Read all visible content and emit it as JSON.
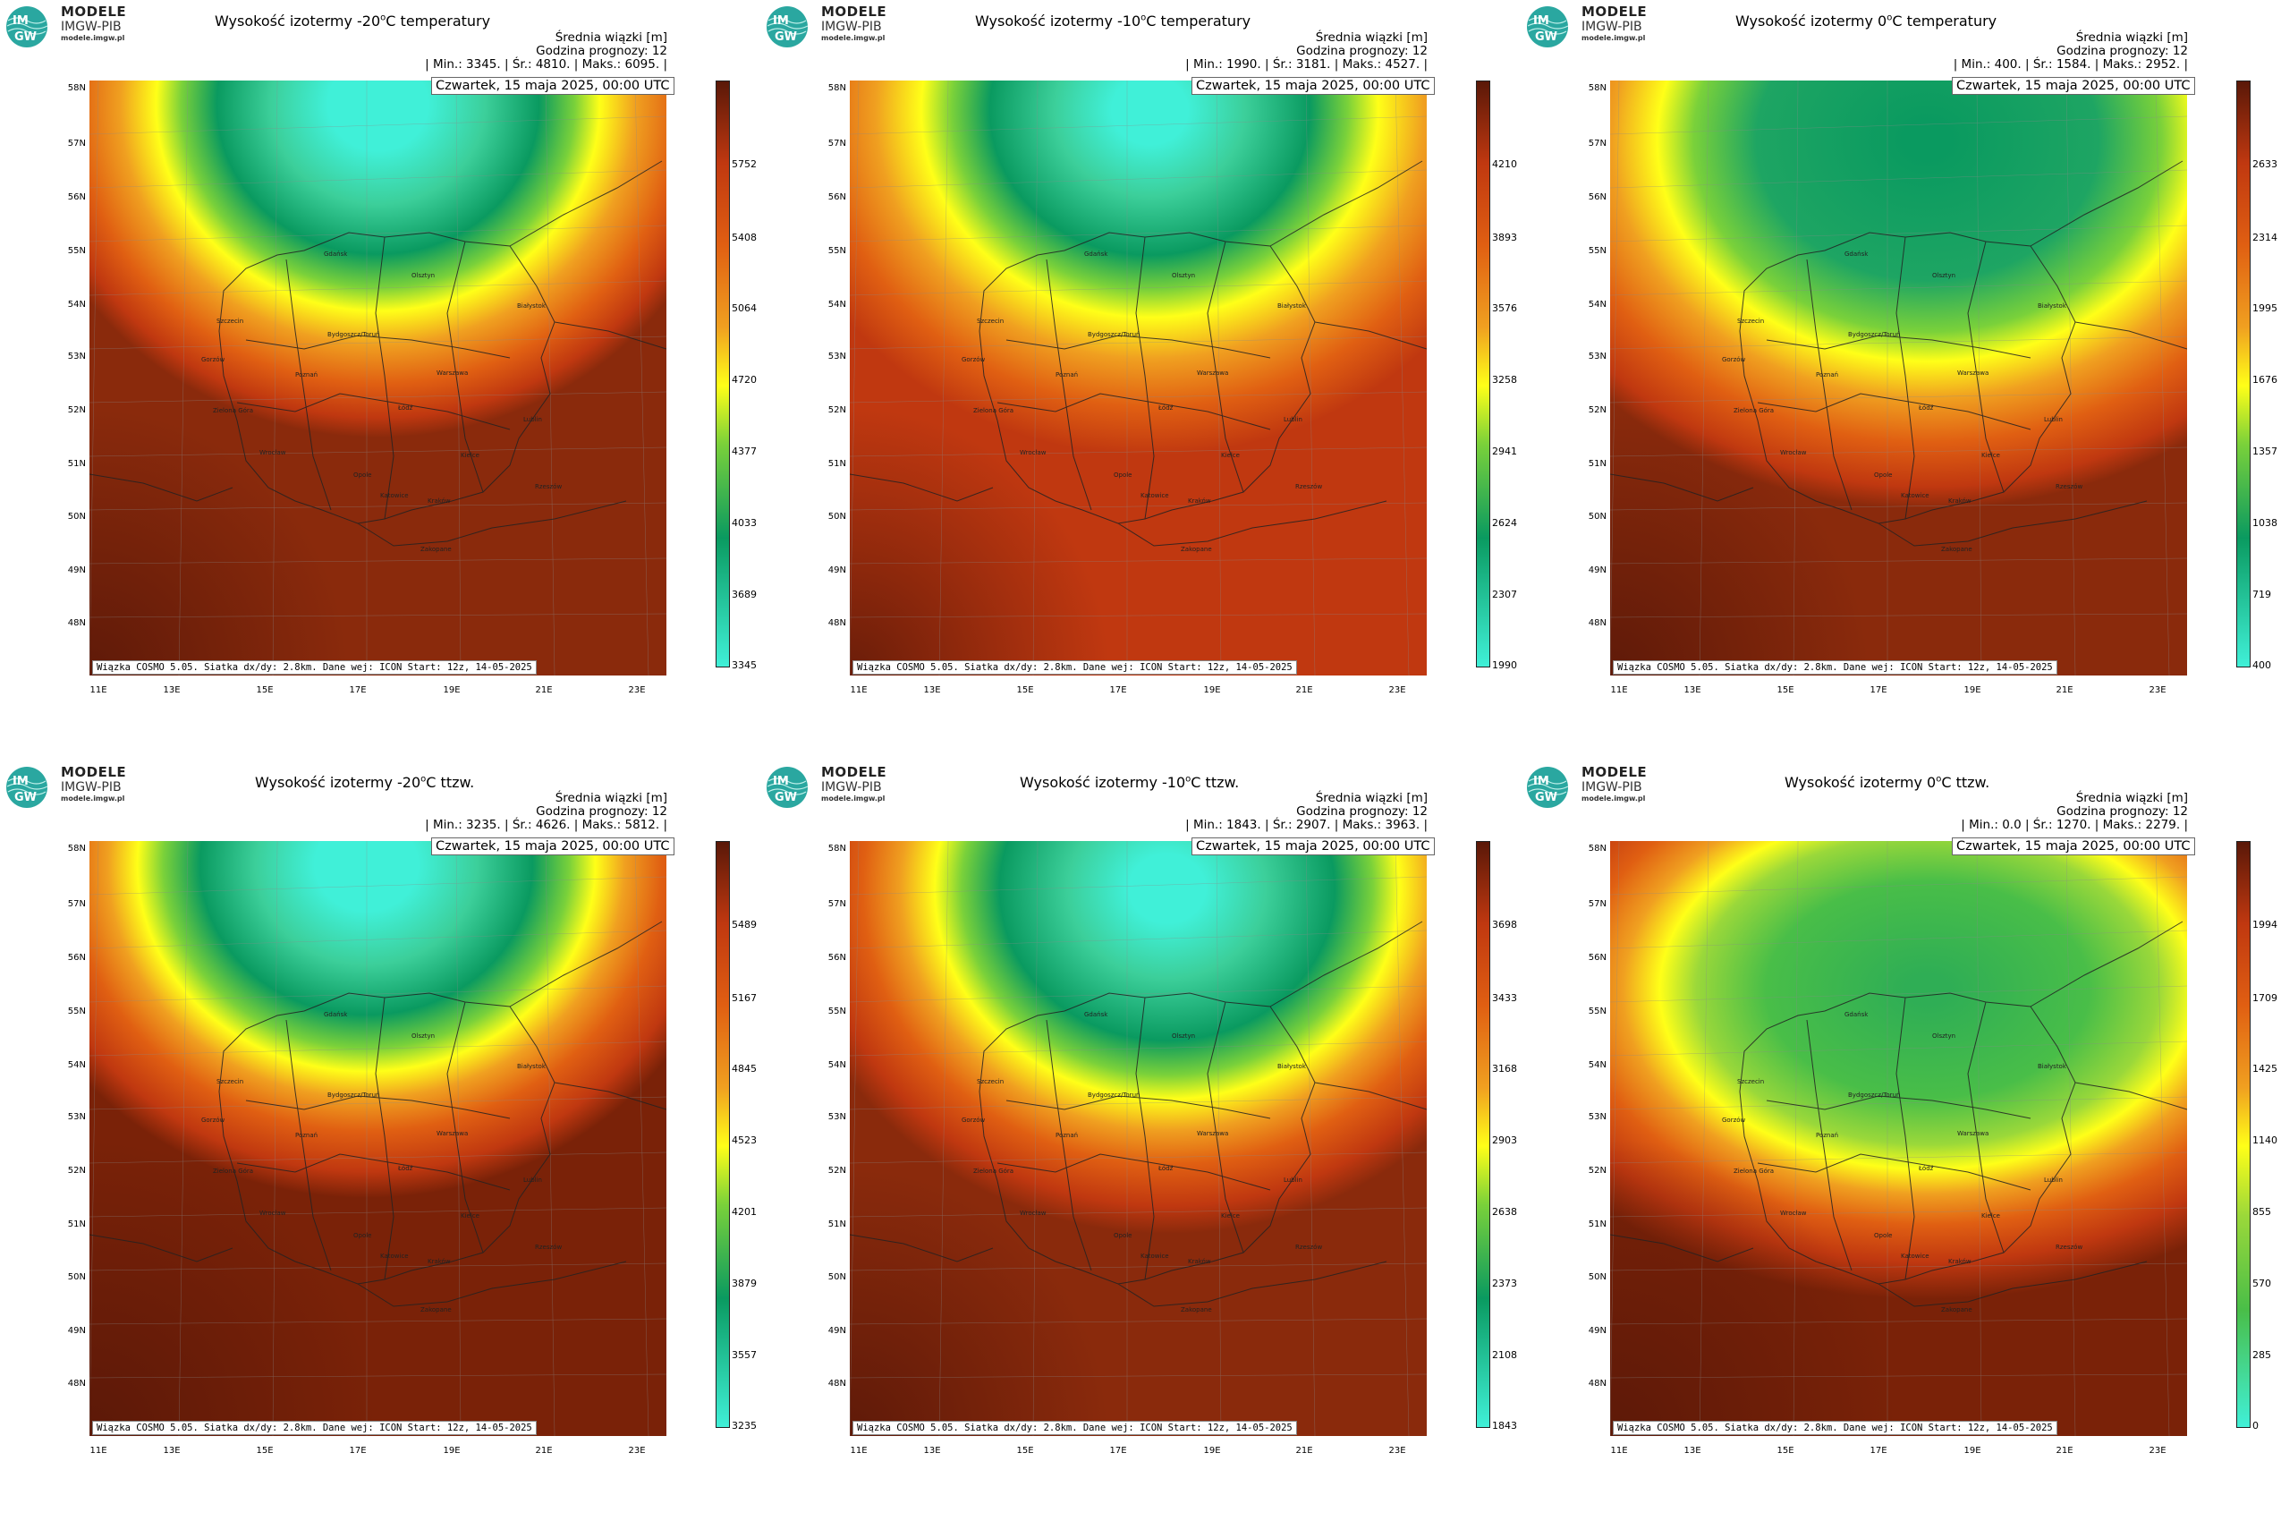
{
  "brand": {
    "line1": "MODELE",
    "line2": "IMGW-PIB",
    "line3": "modele.imgw.pl",
    "logo_text_top": "IM",
    "logo_text_bottom": "GW"
  },
  "common": {
    "subtitle": "Średnia wiązki [m]",
    "forecast": "Godzina prognozy: 12",
    "date": "Czwartek, 15 maja 2025, 00:00 UTC",
    "footer": "Wiązka COSMO 5.05. Siatka dx/dy: 2.8km. Dane wej: ICON Start: 12z, 14-05-2025",
    "lat_labels": [
      "58N",
      "57N",
      "56N",
      "55N",
      "54N",
      "53N",
      "52N",
      "51N",
      "50N",
      "49N",
      "48N"
    ],
    "lon_labels": [
      "11E",
      "13E",
      "15E",
      "17E",
      "19E",
      "21E",
      "23E"
    ],
    "cities": [
      "Gdańsk",
      "Olsztyn",
      "Białystok",
      "Szczecin",
      "Bydgoszcz/Toruń",
      "Gorzów",
      "Poznań",
      "Warszawa",
      "Zielona Góra",
      "Łódź",
      "Lublin",
      "Wrocław",
      "Kielce",
      "Opole",
      "Rzeszów",
      "Katowice",
      "Kraków",
      "Zakopane"
    ],
    "colors": {
      "cyan": "#40f0d8",
      "green_dark": "#0a9a60",
      "green_light": "#7ad13a",
      "yellow": "#ffff18",
      "orange": "#f0a020",
      "orange_red": "#e05f12",
      "red": "#c03810",
      "dark_red": "#5a1808"
    }
  },
  "panels": [
    {
      "title_pre": "Wysokość izotermy -20",
      "title_deg": "o",
      "title_post": "C temperatury",
      "stats": "| Min.: 3345. | Śr.: 4810. | Maks.: 6095. |",
      "ticks": [
        "5752",
        "5408",
        "5064",
        "4720",
        "4377",
        "4033",
        "3689",
        "3345"
      ],
      "scale": {
        "min": 3345,
        "max": 6095
      }
    },
    {
      "title_pre": "Wysokość izotermy -10",
      "title_deg": "o",
      "title_post": "C temperatury",
      "stats": "| Min.: 1990. | Śr.: 3181. | Maks.: 4527. |",
      "ticks": [
        "4210",
        "3893",
        "3576",
        "3258",
        "2941",
        "2624",
        "2307",
        "1990"
      ],
      "scale": {
        "min": 1990,
        "max": 4527
      }
    },
    {
      "title_pre": "Wysokość izotermy 0",
      "title_deg": "o",
      "title_post": "C temperatury",
      "stats": "| Min.: 400. | Śr.: 1584. | Maks.: 2952. |",
      "ticks": [
        "2633",
        "2314",
        "1995",
        "1676",
        "1357",
        "1038",
        "719",
        "400"
      ],
      "scale": {
        "min": 400,
        "max": 2952
      }
    },
    {
      "title_pre": "Wysokość izotermy -20",
      "title_deg": "o",
      "title_post": "C ttzw.",
      "stats": "| Min.: 3235. | Śr.: 4626. | Maks.: 5812. |",
      "ticks": [
        "5489",
        "5167",
        "4845",
        "4523",
        "4201",
        "3879",
        "3557",
        "3235"
      ],
      "scale": {
        "min": 3235,
        "max": 5812
      }
    },
    {
      "title_pre": "Wysokość izotermy -10",
      "title_deg": "o",
      "title_post": "C ttzw.",
      "stats": "| Min.: 1843. | Śr.: 2907. | Maks.: 3963. |",
      "ticks": [
        "3698",
        "3433",
        "3168",
        "2903",
        "2638",
        "2373",
        "2108",
        "1843"
      ],
      "scale": {
        "min": 1843,
        "max": 3963
      }
    },
    {
      "title_pre": "Wysokość izotermy 0",
      "title_deg": "o",
      "title_post": "C ttzw.",
      "stats": "| Min.: 0.0 | Śr.: 1270. | Maks.: 2279. |",
      "ticks": [
        "1994",
        "1709",
        "1425",
        "1140",
        "855",
        "570",
        "285",
        "0"
      ],
      "scale": {
        "min": 0,
        "max": 2279
      }
    }
  ]
}
